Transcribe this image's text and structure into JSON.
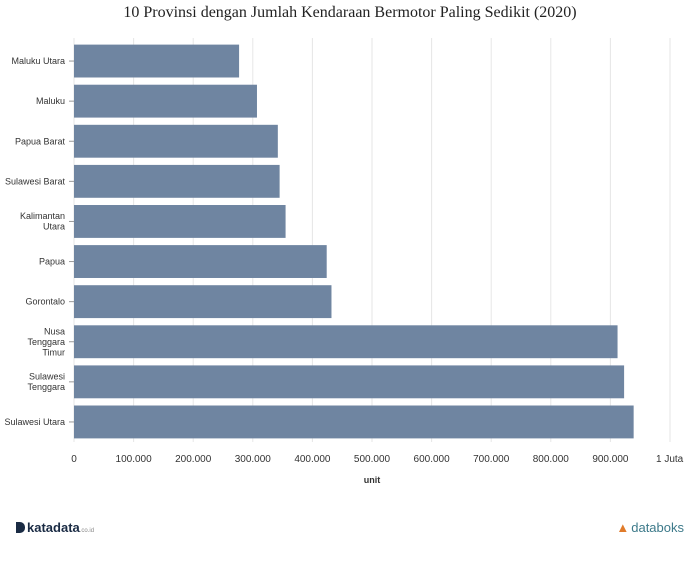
{
  "chart_data": {
    "type": "bar",
    "orientation": "horizontal",
    "title": "10 Provinsi dengan Jumlah Kendaraan Bermotor Paling Sedikit (2020)",
    "xlabel": "unit",
    "categories": [
      [
        "Maluku Utara"
      ],
      [
        "Maluku"
      ],
      [
        "Papua Barat"
      ],
      [
        "Sulawesi Barat"
      ],
      [
        "Kalimantan",
        "Utara"
      ],
      [
        "Papua"
      ],
      [
        "Gorontalo"
      ],
      [
        "Nusa",
        "Tenggara",
        "Timur"
      ],
      [
        "Sulawesi",
        "Tenggara"
      ],
      [
        "Sulawesi Utara"
      ]
    ],
    "values": [
      277000,
      307000,
      342000,
      345000,
      355000,
      424000,
      432000,
      912000,
      923000,
      939000
    ],
    "xlim": [
      0,
      1000000
    ],
    "xticks": [
      {
        "value": 0,
        "label": "0"
      },
      {
        "value": 100000,
        "label": "100.000"
      },
      {
        "value": 200000,
        "label": "200.000"
      },
      {
        "value": 300000,
        "label": "300.000"
      },
      {
        "value": 400000,
        "label": "400.000"
      },
      {
        "value": 500000,
        "label": "500.000"
      },
      {
        "value": 600000,
        "label": "600.000"
      },
      {
        "value": 700000,
        "label": "700.000"
      },
      {
        "value": 800000,
        "label": "800.000"
      },
      {
        "value": 900000,
        "label": "900.000"
      },
      {
        "value": 1000000,
        "label": "1 Juta"
      }
    ],
    "bar_color": "#6f85a1",
    "grid": true
  },
  "footer": {
    "left_brand": "katadata",
    "left_domain": ".co.id",
    "right_brand": "databoks"
  }
}
